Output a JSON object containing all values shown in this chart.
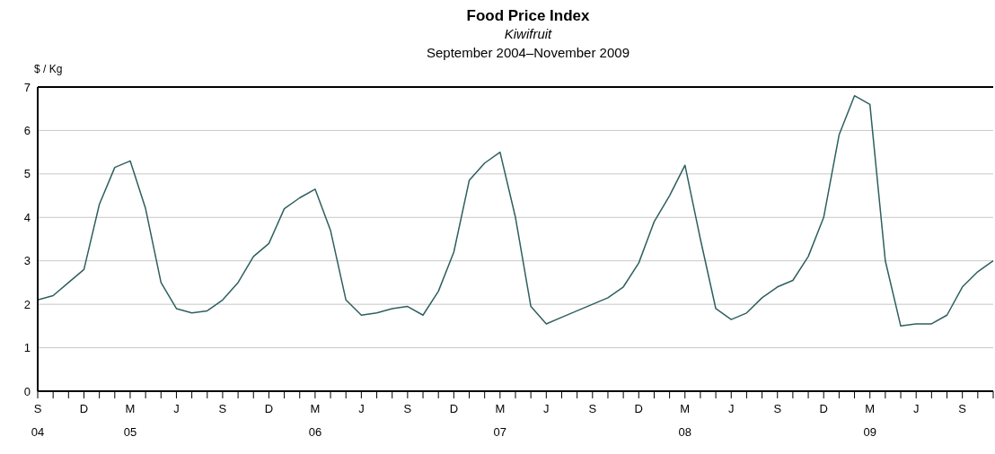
{
  "chart_data": {
    "type": "line",
    "title": "Food Price Index",
    "subtitle": "Kiwifruit",
    "annotations": [
      "September 2004–November 2009"
    ],
    "ylabel": "$ / Kg",
    "categories": [
      "S\n04",
      null,
      null,
      "D",
      null,
      null,
      "M\n05",
      null,
      null,
      "J",
      null,
      null,
      "S",
      null,
      null,
      "D",
      null,
      null,
      "M\n06",
      null,
      null,
      "J",
      null,
      null,
      "S",
      null,
      null,
      "D",
      null,
      null,
      "M\n07",
      null,
      null,
      "J",
      null,
      null,
      "S",
      null,
      null,
      "D",
      null,
      null,
      "M\n08",
      null,
      null,
      "J",
      null,
      null,
      "S",
      null,
      null,
      "D",
      null,
      null,
      "M\n09",
      null,
      null,
      "J",
      null,
      null,
      "S",
      null,
      null
    ],
    "series": [
      {
        "color": "#2f5f5f",
        "values": [
          2.1,
          2.2,
          2.5,
          2.8,
          4.3,
          5.15,
          5.3,
          4.2,
          2.5,
          1.9,
          1.8,
          1.85,
          2.1,
          2.5,
          3.1,
          3.4,
          4.2,
          4.45,
          4.65,
          3.7,
          2.1,
          1.75,
          1.8,
          1.9,
          1.95,
          1.75,
          2.3,
          3.2,
          4.85,
          5.25,
          5.5,
          4.0,
          1.95,
          1.55,
          1.7,
          1.85,
          2.0,
          2.15,
          2.4,
          2.95,
          3.9,
          4.5,
          5.2,
          3.5,
          1.9,
          1.65,
          1.8,
          2.15,
          2.4,
          2.55,
          3.1,
          4.0,
          5.9,
          6.8,
          6.6,
          3.0,
          1.5,
          1.55,
          1.55,
          1.75,
          2.4,
          2.75,
          3.0
        ]
      }
    ],
    "ylim": [
      0,
      7
    ],
    "yticks": [
      0,
      1,
      2,
      3,
      4,
      5,
      6,
      7
    ],
    "grid": "y",
    "legend": false,
    "marker": "none",
    "line_style": "solid"
  }
}
